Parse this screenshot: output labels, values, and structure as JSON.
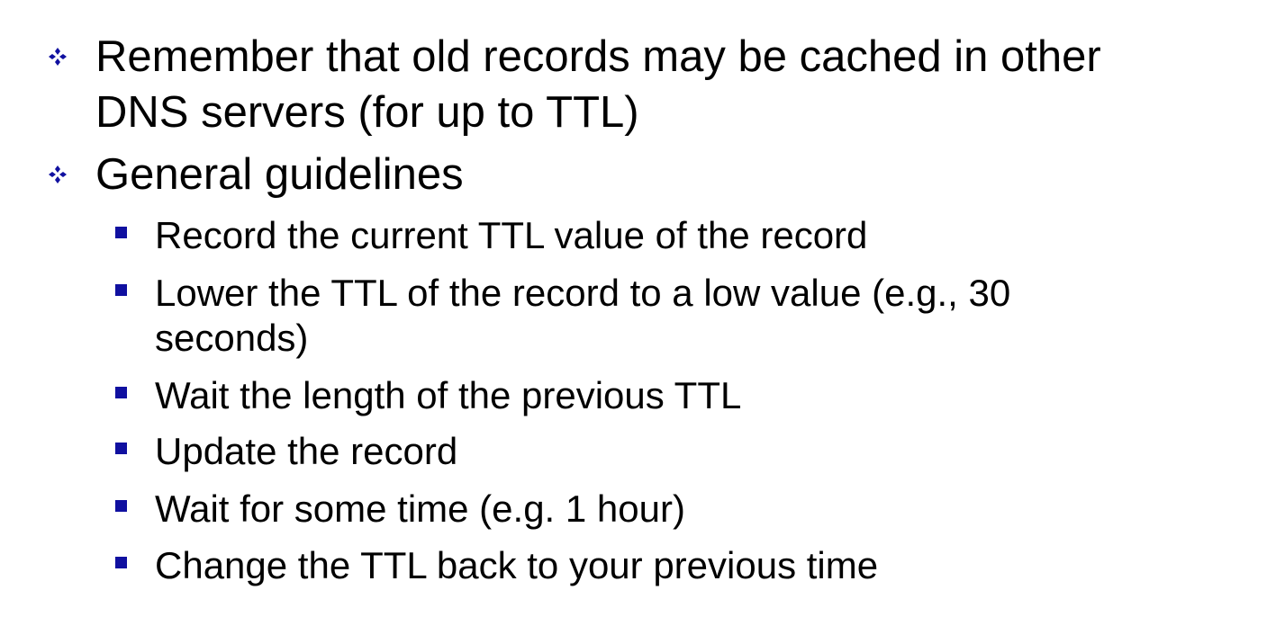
{
  "colors": {
    "bullet": "#1010a0",
    "text": "#000000",
    "background": "#ffffff"
  },
  "bullets": [
    {
      "icon": "four-diamond-bullet-icon",
      "lines": [
        "Remember that old records may be cached in other",
        "DNS servers (for up to TTL)"
      ]
    },
    {
      "icon": "four-diamond-bullet-icon",
      "lines": [
        "General guidelines"
      ],
      "sub_items": [
        {
          "icon": "square-bullet-icon",
          "lines": [
            "Record the current TTL value of the record"
          ]
        },
        {
          "icon": "square-bullet-icon",
          "lines": [
            "Lower the TTL of the record to a low value (e.g., 30",
            "seconds)"
          ]
        },
        {
          "icon": "square-bullet-icon",
          "lines": [
            "Wait the length of the previous TTL"
          ]
        },
        {
          "icon": "square-bullet-icon",
          "lines": [
            "Update the record"
          ]
        },
        {
          "icon": "square-bullet-icon",
          "lines": [
            "Wait for some time (e.g. 1 hour)"
          ]
        },
        {
          "icon": "square-bullet-icon",
          "lines": [
            "Change the TTL back to your previous time"
          ]
        }
      ]
    }
  ]
}
